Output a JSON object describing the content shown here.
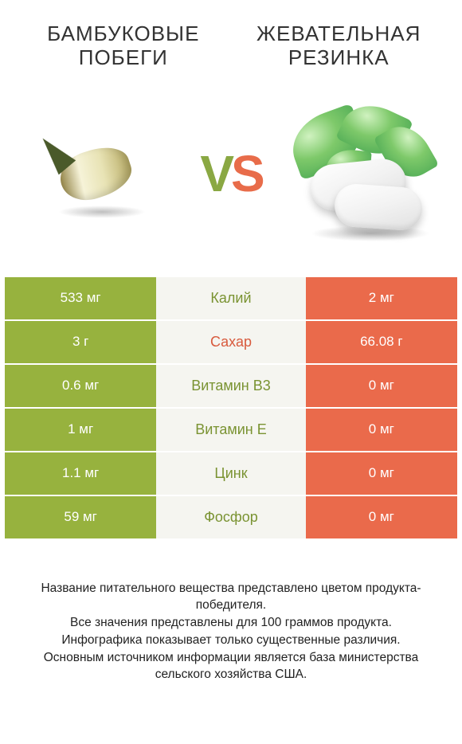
{
  "colors": {
    "left": "#97b23e",
    "right": "#ea6a4b",
    "mid_bg": "#f5f5f0",
    "winner_left_text": "#7a9332",
    "winner_right_text": "#d85a3d"
  },
  "titles": {
    "left": "БАМБУКОВЫЕ ПОБЕГИ",
    "right": "ЖЕВАТЕЛЬНАЯ РЕЗИНКА"
  },
  "vs": {
    "v": "V",
    "s": "S"
  },
  "rows": [
    {
      "left": "533 мг",
      "label": "Калий",
      "right": "2 мг",
      "winner": "left"
    },
    {
      "left": "3 г",
      "label": "Сахар",
      "right": "66.08 г",
      "winner": "right"
    },
    {
      "left": "0.6 мг",
      "label": "Витамин B3",
      "right": "0 мг",
      "winner": "left"
    },
    {
      "left": "1 мг",
      "label": "Витамин E",
      "right": "0 мг",
      "winner": "left"
    },
    {
      "left": "1.1 мг",
      "label": "Цинк",
      "right": "0 мг",
      "winner": "left"
    },
    {
      "left": "59 мг",
      "label": "Фосфор",
      "right": "0 мг",
      "winner": "left"
    }
  ],
  "footer": {
    "l1": "Название питательного вещества представлено цветом продукта-победителя.",
    "l2": "Все значения представлены для 100 граммов продукта.",
    "l3": "Инфографика показывает только существенные различия.",
    "l4": "Основным источником информации является база министерства сельского хозяйства США."
  }
}
